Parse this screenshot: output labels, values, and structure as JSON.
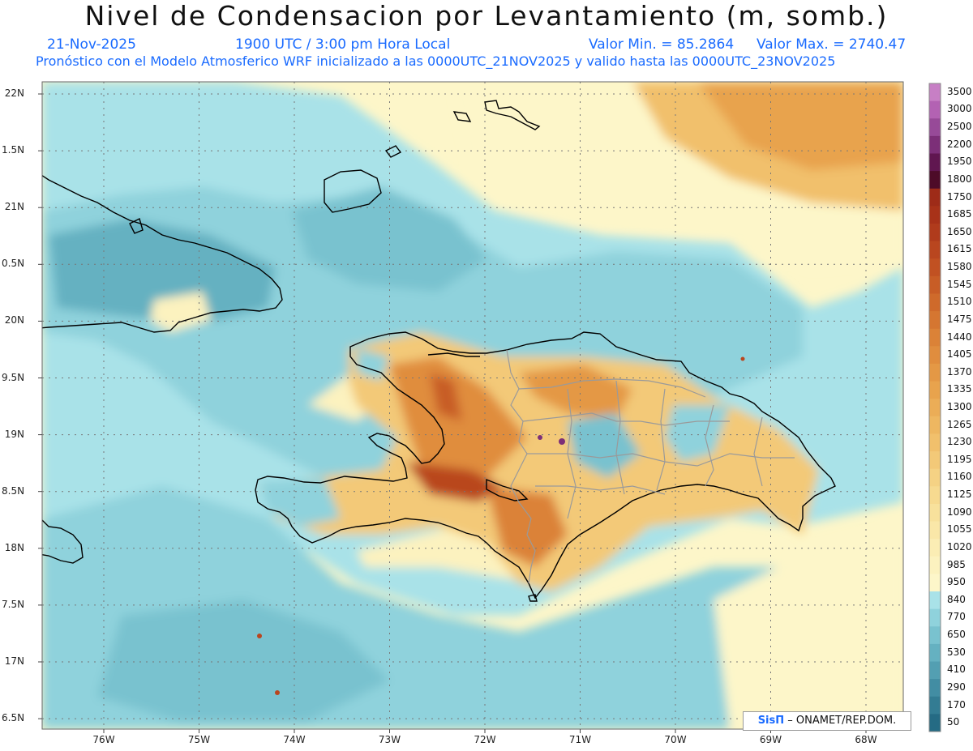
{
  "header": {
    "title": "Nivel de Condensacion por Levantamiento (m, somb.)",
    "date": "21-Nov-2025",
    "time": "1900 UTC / 3:00 pm Hora Local",
    "vmin": "Valor Min. = 85.2864",
    "vmax": "Valor Max. = 2740.47",
    "subtitle": "Pronóstico con el Modelo Atmosferico WRF inicializado a las 0000UTC_21NOV2025 y valido hasta las  0000UTC_23NOV2025"
  },
  "axes": {
    "y_labels": [
      "22N",
      "1.5N",
      "21N",
      "0.5N",
      "20N",
      "9.5N",
      "19N",
      "8.5N",
      "18N",
      "7.5N",
      "17N",
      "6.5N"
    ],
    "x_labels": [
      "76W",
      "75W",
      "74W",
      "73W",
      "72W",
      "71W",
      "70W",
      "69W",
      "68W"
    ]
  },
  "colorbar": {
    "labels": [
      "3500",
      "3000",
      "2500",
      "2200",
      "1950",
      "1800",
      "1750",
      "1685",
      "1650",
      "1615",
      "1580",
      "1545",
      "1510",
      "1475",
      "1440",
      "1405",
      "1370",
      "1335",
      "1300",
      "1265",
      "1230",
      "1195",
      "1160",
      "1125",
      "1090",
      "1055",
      "1020",
      "985",
      "950",
      "840",
      "770",
      "650",
      "530",
      "410",
      "290",
      "170",
      "50"
    ],
    "colors": [
      "#c77fc5",
      "#b362b3",
      "#974a98",
      "#7c2f78",
      "#601650",
      "#4d0b28",
      "#9e2b18",
      "#a83219",
      "#b03b1c",
      "#b9461f",
      "#c15122",
      "#c85d26",
      "#cf6a2b",
      "#d57631",
      "#db8237",
      "#e08d3e",
      "#e49845",
      "#e8a34d",
      "#ebad57",
      "#eeb761",
      "#f1c06c",
      "#f3c978",
      "#f5d284",
      "#f7da90",
      "#f8e19c",
      "#fae7a8",
      "#fbedb4",
      "#fcf2bf",
      "#fdf6c9",
      "#a9e2e8",
      "#8fd2dc",
      "#79c2cf",
      "#65b1c1",
      "#539fb2",
      "#428da3",
      "#337c93",
      "#256b84"
    ]
  },
  "credit": {
    "logo": "SisΠ",
    "text": "– ONAMET/REP.DOM."
  },
  "map": {
    "lat_range": [
      16.5,
      22
    ],
    "lon_range": [
      -76.5,
      -67.5
    ],
    "background": "#fdf6c9",
    "sea_color": "#8fd2dc",
    "land_orange": "#e08d3e",
    "land_dark": "#a83219",
    "coast_color": "#000000",
    "border_color": "#9a9a9a"
  }
}
